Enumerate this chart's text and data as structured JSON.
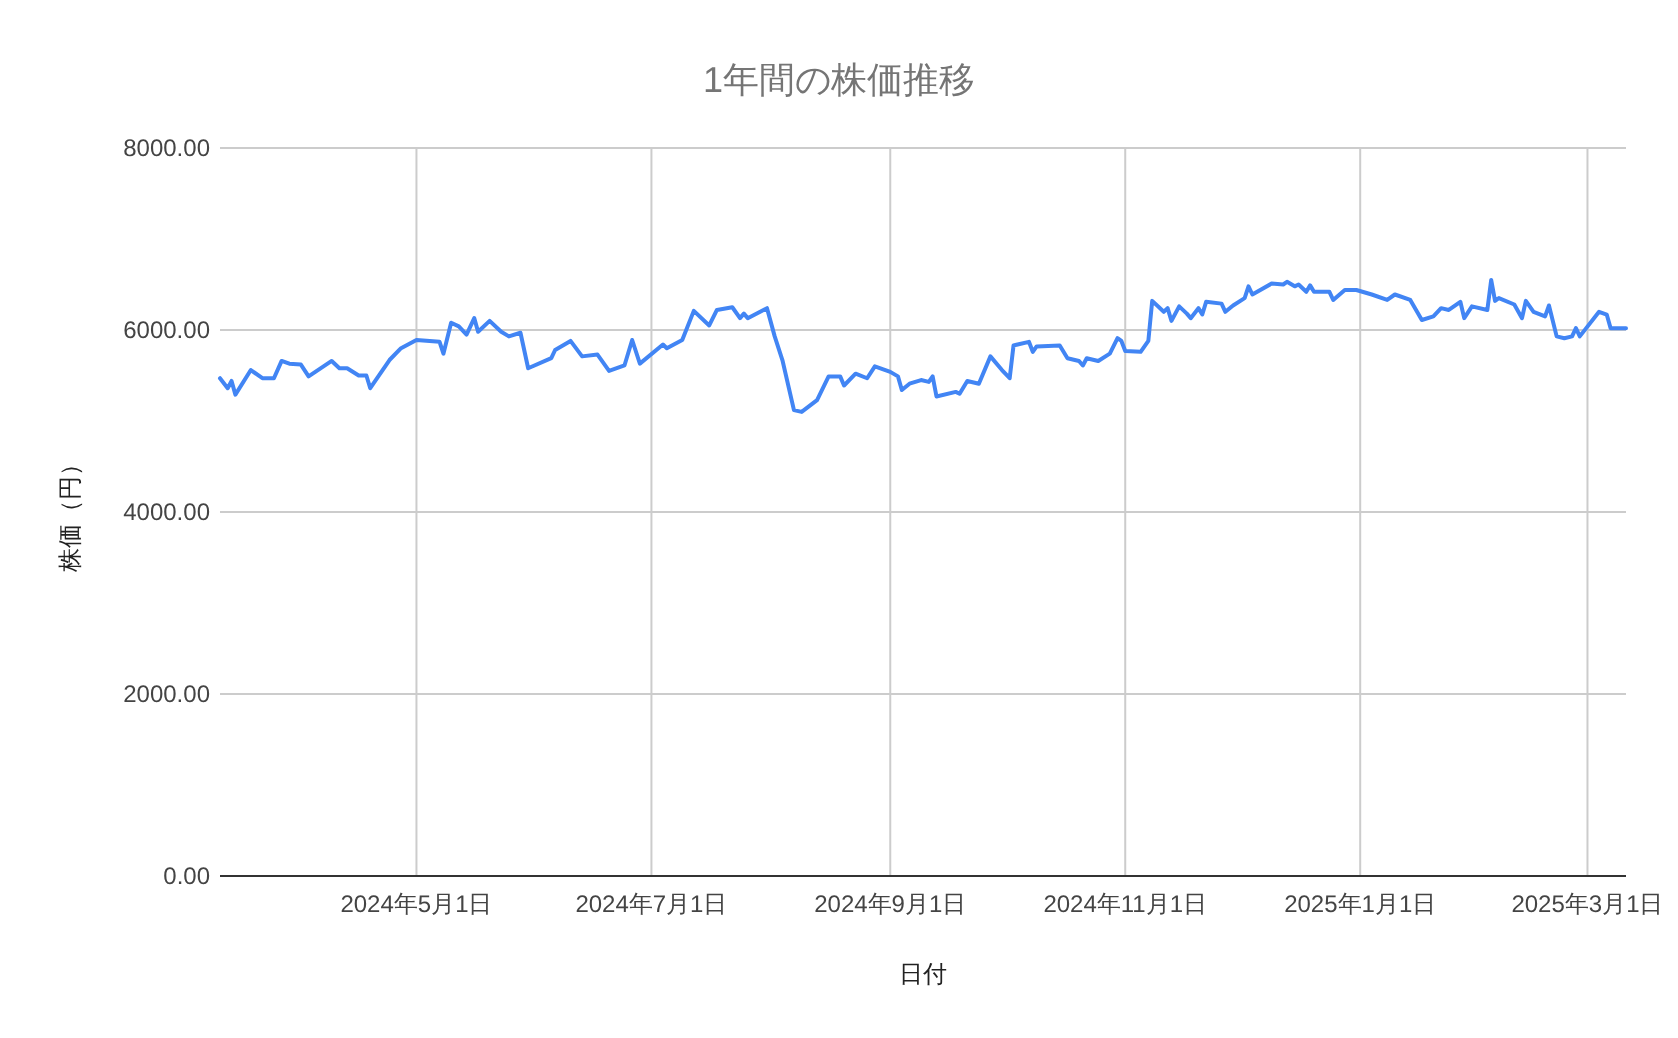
{
  "chart_data": {
    "type": "line",
    "title": "1年間の株価推移",
    "xlabel": "日付",
    "ylabel": "株価（円）",
    "x": [
      "2024-03-11",
      "2024-03-13",
      "2024-03-14",
      "2024-03-15",
      "2024-03-19",
      "2024-03-22",
      "2024-03-25",
      "2024-03-27",
      "2024-03-29",
      "2024-04-01",
      "2024-04-03",
      "2024-04-09",
      "2024-04-11",
      "2024-04-13",
      "2024-04-16",
      "2024-04-18",
      "2024-04-19",
      "2024-04-24",
      "2024-04-27",
      "2024-05-01",
      "2024-05-07",
      "2024-05-08",
      "2024-05-10",
      "2024-05-12",
      "2024-05-14",
      "2024-05-16",
      "2024-05-17",
      "2024-05-20",
      "2024-05-23",
      "2024-05-25",
      "2024-05-28",
      "2024-05-30",
      "2024-06-05",
      "2024-06-06",
      "2024-06-10",
      "2024-06-13",
      "2024-06-17",
      "2024-06-20",
      "2024-06-24",
      "2024-06-26",
      "2024-06-28",
      "2024-07-04",
      "2024-07-05",
      "2024-07-09",
      "2024-07-12",
      "2024-07-16",
      "2024-07-18",
      "2024-07-22",
      "2024-07-24",
      "2024-07-25",
      "2024-07-26",
      "2024-07-31",
      "2024-08-02",
      "2024-08-04",
      "2024-08-07",
      "2024-08-09",
      "2024-08-13",
      "2024-08-16",
      "2024-08-19",
      "2024-08-20",
      "2024-08-23",
      "2024-08-26",
      "2024-08-28",
      "2024-09-01",
      "2024-09-03",
      "2024-09-04",
      "2024-09-06",
      "2024-09-09",
      "2024-09-11",
      "2024-09-12",
      "2024-09-13",
      "2024-09-18",
      "2024-09-19",
      "2024-09-21",
      "2024-09-24",
      "2024-09-27",
      "2024-09-30",
      "2024-10-02",
      "2024-10-03",
      "2024-10-07",
      "2024-10-08",
      "2024-10-09",
      "2024-10-15",
      "2024-10-17",
      "2024-10-20",
      "2024-10-21",
      "2024-10-22",
      "2024-10-25",
      "2024-10-28",
      "2024-10-30",
      "2024-10-31",
      "2024-11-01",
      "2024-11-05",
      "2024-11-07",
      "2024-11-08",
      "2024-11-11",
      "2024-11-12",
      "2024-11-13",
      "2024-11-15",
      "2024-11-17",
      "2024-11-18",
      "2024-11-20",
      "2024-11-21",
      "2024-11-22",
      "2024-11-26",
      "2024-11-27",
      "2024-11-29",
      "2024-12-02",
      "2024-12-03",
      "2024-12-04",
      "2024-12-09",
      "2024-12-12",
      "2024-12-13",
      "2024-12-15",
      "2024-12-16",
      "2024-12-18",
      "2024-12-19",
      "2024-12-20",
      "2024-12-24",
      "2024-12-25",
      "2024-12-28",
      "2024-12-31",
      "2025-01-04",
      "2025-01-08",
      "2025-01-10",
      "2025-01-14",
      "2025-01-17",
      "2025-01-20",
      "2025-01-22",
      "2025-01-24",
      "2025-01-27",
      "2025-01-28",
      "2025-01-30",
      "2025-02-03",
      "2025-02-04",
      "2025-02-05",
      "2025-02-06",
      "2025-02-10",
      "2025-02-12",
      "2025-02-13",
      "2025-02-15",
      "2025-02-18",
      "2025-02-19",
      "2025-02-21",
      "2025-02-23",
      "2025-02-25",
      "2025-02-26",
      "2025-02-27",
      "2025-03-04",
      "2025-03-06",
      "2025-03-07",
      "2025-03-11"
    ],
    "series": [
      {
        "color": "#4285f4",
        "values": [
          5470,
          5360,
          5440,
          5290,
          5560,
          5470,
          5470,
          5660,
          5630,
          5620,
          5490,
          5660,
          5580,
          5580,
          5500,
          5500,
          5360,
          5670,
          5800,
          5890,
          5870,
          5740,
          6080,
          6040,
          5950,
          6130,
          5980,
          6100,
          5980,
          5930,
          5970,
          5580,
          5690,
          5780,
          5880,
          5710,
          5730,
          5550,
          5610,
          5890,
          5630,
          5840,
          5800,
          5890,
          6210,
          6050,
          6220,
          6250,
          6130,
          6180,
          6130,
          6240,
          5930,
          5670,
          5120,
          5100,
          5230,
          5490,
          5490,
          5390,
          5520,
          5470,
          5600,
          5540,
          5490,
          5340,
          5410,
          5450,
          5430,
          5490,
          5270,
          5320,
          5300,
          5440,
          5410,
          5710,
          5560,
          5470,
          5830,
          5870,
          5760,
          5820,
          5830,
          5690,
          5660,
          5610,
          5690,
          5660,
          5740,
          5910,
          5880,
          5770,
          5760,
          5880,
          6320,
          6200,
          6240,
          6100,
          6260,
          6180,
          6130,
          6240,
          6170,
          6310,
          6290,
          6200,
          6270,
          6350,
          6480,
          6390,
          6510,
          6500,
          6530,
          6480,
          6500,
          6420,
          6490,
          6420,
          6420,
          6330,
          6440,
          6440,
          6390,
          6330,
          6390,
          6330,
          6110,
          6150,
          6240,
          6220,
          6310,
          6130,
          6260,
          6220,
          6550,
          6320,
          6350,
          6280,
          6130,
          6320,
          6200,
          6150,
          6270,
          5930,
          5910,
          5930,
          6020,
          5930,
          6200,
          6170,
          6020,
          6020
        ]
      }
    ],
    "xlim": [
      "2024-03-11",
      "2025-03-11"
    ],
    "xticks": [
      {
        "value": "2024-05-01",
        "label": "2024年5月1日"
      },
      {
        "value": "2024-07-01",
        "label": "2024年7月1日"
      },
      {
        "value": "2024-09-01",
        "label": "2024年9月1日"
      },
      {
        "value": "2024-11-01",
        "label": "2024年11月1日"
      },
      {
        "value": "2025-01-01",
        "label": "2025年1月1日"
      },
      {
        "value": "2025-03-01",
        "label": "2025年3月1日"
      }
    ],
    "ylim": [
      0,
      8000
    ],
    "yticks": [
      {
        "value": 0,
        "label": "0.00"
      },
      {
        "value": 2000,
        "label": "2000.00"
      },
      {
        "value": 4000,
        "label": "4000.00"
      },
      {
        "value": 6000,
        "label": "6000.00"
      },
      {
        "value": 8000,
        "label": "8000.00"
      }
    ],
    "grid": true
  }
}
